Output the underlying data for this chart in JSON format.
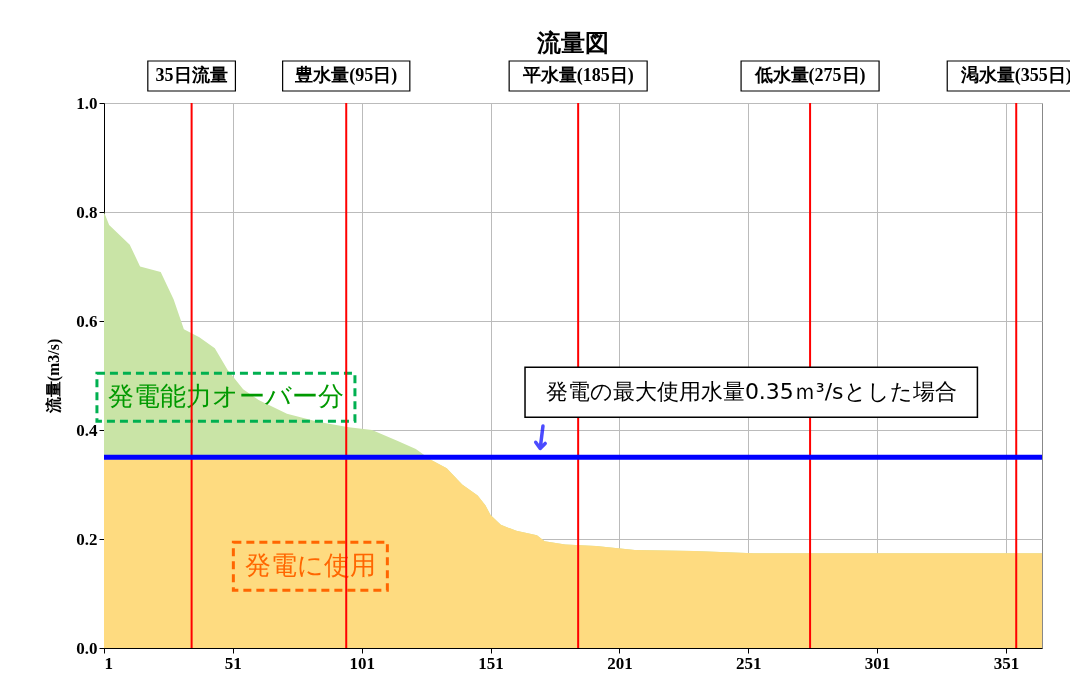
{
  "chart_data": {
    "type": "area",
    "title": "流量図",
    "ylabel": "流量(m3/s)",
    "x": [
      1,
      3,
      11,
      15,
      23,
      28,
      32,
      38,
      44,
      49,
      55,
      61,
      72,
      84,
      96,
      105,
      115,
      122,
      128,
      134,
      140,
      146,
      149,
      151,
      155,
      161,
      169,
      172,
      180,
      192,
      207,
      230,
      253,
      365
    ],
    "series": [
      {
        "name": "発電能力オーバー分",
        "color": "#c9e4a6",
        "values": [
          0.8,
          0.776,
          0.74,
          0.7,
          0.69,
          0.64,
          0.585,
          0.57,
          0.55,
          0.51,
          0.475,
          0.455,
          0.43,
          0.415,
          0.405,
          0.4,
          0.38,
          0.365,
          0.345,
          0.33,
          0.3,
          0.28,
          0.262,
          0.244,
          0.226,
          0.215,
          0.207,
          0.196,
          0.19,
          0.187,
          0.18,
          0.178,
          0.174,
          0.174
        ]
      },
      {
        "name": "発電に使用",
        "color": "#fedb80",
        "values": [
          0.35,
          0.35,
          0.35,
          0.35,
          0.35,
          0.35,
          0.35,
          0.35,
          0.35,
          0.35,
          0.35,
          0.35,
          0.35,
          0.35,
          0.35,
          0.35,
          0.35,
          0.35,
          0.345,
          0.33,
          0.3,
          0.28,
          0.262,
          0.244,
          0.226,
          0.215,
          0.207,
          0.196,
          0.19,
          0.187,
          0.18,
          0.178,
          0.174,
          0.174
        ]
      }
    ],
    "xlim": [
      1,
      365
    ],
    "xticks": [
      1,
      51,
      101,
      151,
      201,
      251,
      301,
      351
    ],
    "ylim": [
      0,
      1
    ],
    "yticks": [
      {
        "value": 0,
        "label": "0.0"
      },
      {
        "value": 0.2,
        "label": "0.2"
      },
      {
        "value": 0.4,
        "label": "0.4"
      },
      {
        "value": 0.6,
        "label": "0.6"
      },
      {
        "value": 0.8,
        "label": "0.8"
      },
      {
        "value": 1,
        "label": "1.0"
      }
    ],
    "grid": true,
    "ref_lines": [
      {
        "axis": "x",
        "value": 35,
        "label": "35日流量",
        "color": "#ff0000"
      },
      {
        "axis": "x",
        "value": 95,
        "label": "豊水量(95日)",
        "color": "#ff0000"
      },
      {
        "axis": "x",
        "value": 185,
        "label": "平水量(185日)",
        "color": "#ff0000"
      },
      {
        "axis": "x",
        "value": 275,
        "label": "低水量(275日)",
        "color": "#ff0000"
      },
      {
        "axis": "x",
        "value": 355,
        "label": "渇水量(355日)",
        "color": "#ff0000"
      },
      {
        "axis": "y",
        "value": 0.35,
        "label": "発電の最大使用水量0.35ｍ³/sとした場合",
        "color": "#0000ff"
      }
    ]
  }
}
